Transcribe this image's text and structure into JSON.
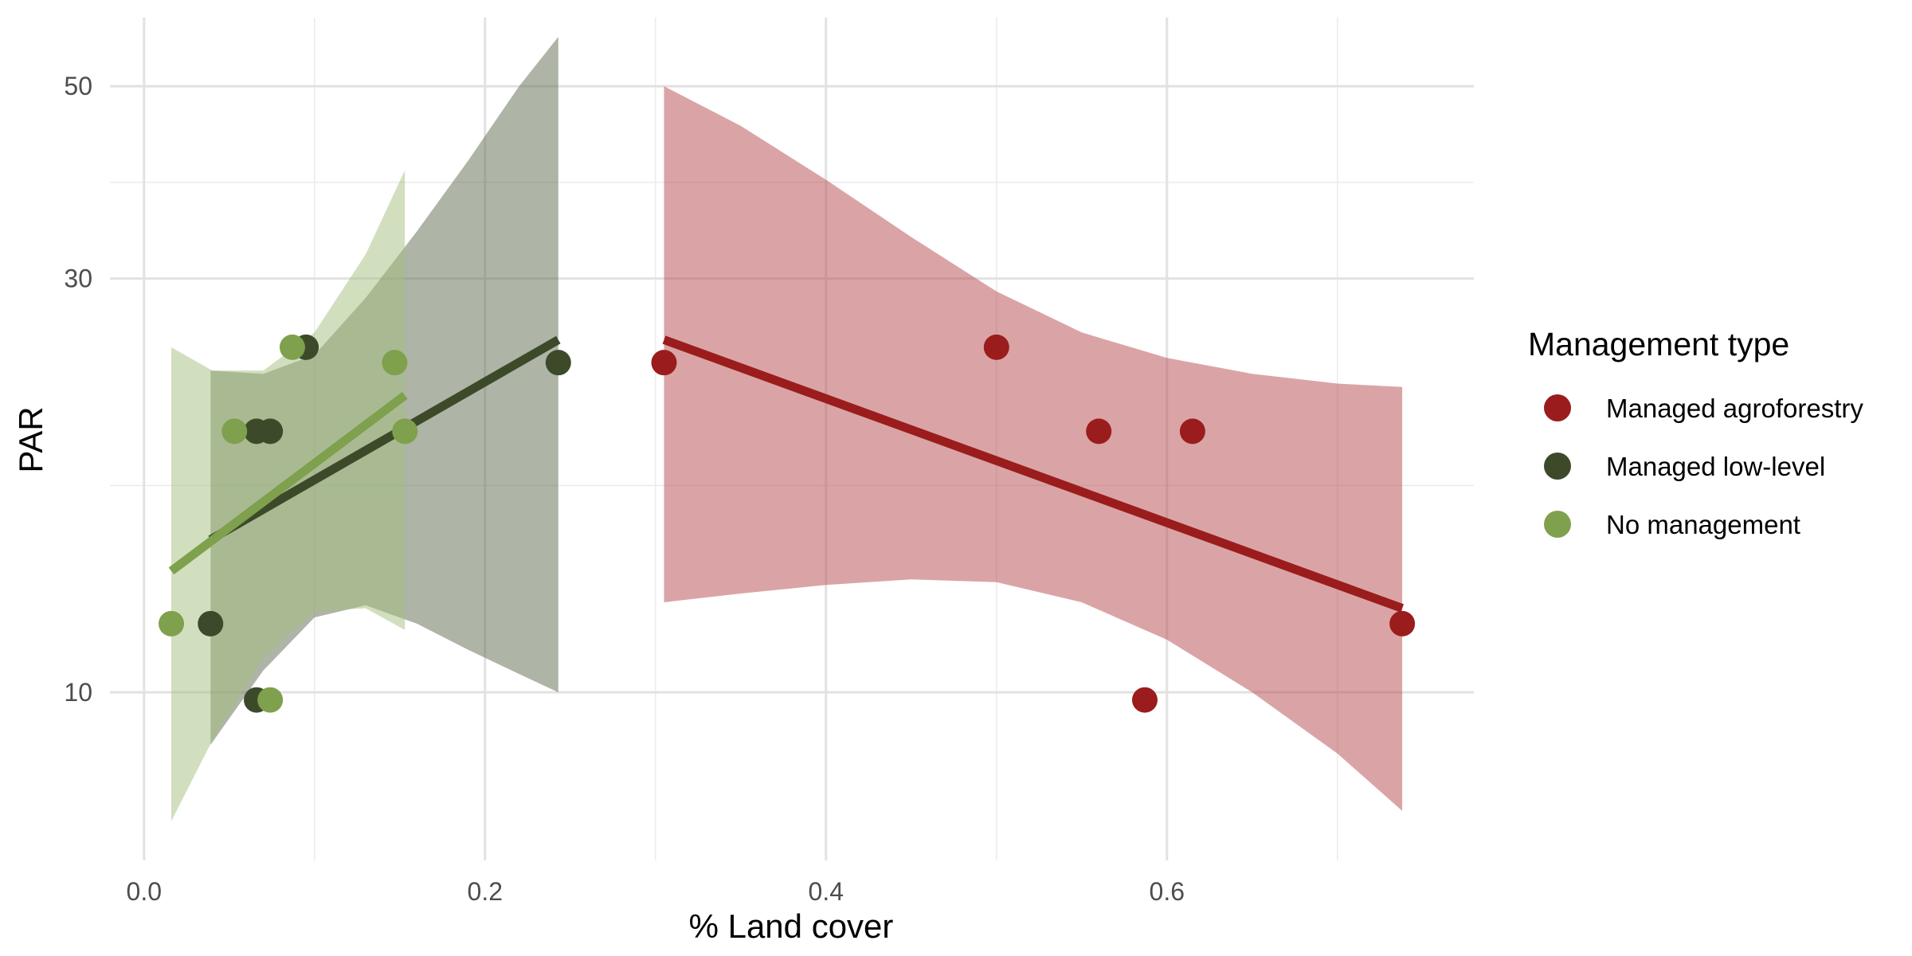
{
  "chart_data": {
    "type": "scatter",
    "title": "",
    "xlabel": "% Land cover",
    "ylabel": "PAR",
    "xlim": [
      -0.02,
      0.78
    ],
    "ylim": [
      6.4,
      60
    ],
    "y_scale": "log",
    "grid": true,
    "x_ticks": [
      {
        "value": 0.0,
        "label": "0.0"
      },
      {
        "value": 0.2,
        "label": "0.2"
      },
      {
        "value": 0.4,
        "label": "0.4"
      },
      {
        "value": 0.6,
        "label": "0.6"
      }
    ],
    "y_ticks": [
      {
        "value": 10,
        "label": "10"
      },
      {
        "value": 30,
        "label": "30"
      },
      {
        "value": 50,
        "label": "50"
      }
    ],
    "legend": {
      "title": "Management type",
      "position": "right"
    },
    "series": [
      {
        "name": "Managed agroforestry",
        "color": "#9b1c1c",
        "band_color": "#b54a4d",
        "points": [
          {
            "x": 0.305,
            "y": 24
          },
          {
            "x": 0.5,
            "y": 25
          },
          {
            "x": 0.56,
            "y": 20
          },
          {
            "x": 0.615,
            "y": 20
          },
          {
            "x": 0.587,
            "y": 9.8
          },
          {
            "x": 0.738,
            "y": 12
          }
        ],
        "fit": [
          {
            "x": 0.305,
            "y": 25.5
          },
          {
            "x": 0.738,
            "y": 12.5
          }
        ],
        "ci": [
          {
            "x": 0.305,
            "lo": 12.7,
            "hi": 50.0
          },
          {
            "x": 0.35,
            "lo": 13.0,
            "hi": 45.0
          },
          {
            "x": 0.4,
            "lo": 13.3,
            "hi": 39.0
          },
          {
            "x": 0.45,
            "lo": 13.5,
            "hi": 33.5
          },
          {
            "x": 0.5,
            "lo": 13.4,
            "hi": 29.0
          },
          {
            "x": 0.55,
            "lo": 12.7,
            "hi": 26.0
          },
          {
            "x": 0.6,
            "lo": 11.5,
            "hi": 24.3
          },
          {
            "x": 0.65,
            "lo": 10.0,
            "hi": 23.3
          },
          {
            "x": 0.7,
            "lo": 8.5,
            "hi": 22.7
          },
          {
            "x": 0.738,
            "lo": 7.3,
            "hi": 22.5
          }
        ]
      },
      {
        "name": "Managed low-level",
        "color": "#3d4a2a",
        "band_color": "#5e6a4e",
        "points": [
          {
            "x": 0.039,
            "y": 12
          },
          {
            "x": 0.066,
            "y": 9.8
          },
          {
            "x": 0.066,
            "y": 20
          },
          {
            "x": 0.074,
            "y": 20
          },
          {
            "x": 0.095,
            "y": 25
          },
          {
            "x": 0.243,
            "y": 24
          }
        ],
        "fit": [
          {
            "x": 0.039,
            "y": 15.0
          },
          {
            "x": 0.243,
            "y": 25.5
          }
        ],
        "ci": [
          {
            "x": 0.039,
            "lo": 8.7,
            "hi": 23.5
          },
          {
            "x": 0.07,
            "lo": 10.6,
            "hi": 23.3
          },
          {
            "x": 0.1,
            "lo": 12.2,
            "hi": 24.5
          },
          {
            "x": 0.13,
            "lo": 12.6,
            "hi": 28.5
          },
          {
            "x": 0.16,
            "lo": 12.0,
            "hi": 34.0
          },
          {
            "x": 0.19,
            "lo": 11.2,
            "hi": 41.0
          },
          {
            "x": 0.22,
            "lo": 10.5,
            "hi": 50.0
          },
          {
            "x": 0.243,
            "lo": 10.0,
            "hi": 57.0
          }
        ]
      },
      {
        "name": "No management",
        "color": "#7fa04d",
        "band_color": "#a3bf80",
        "points": [
          {
            "x": 0.016,
            "y": 12
          },
          {
            "x": 0.053,
            "y": 20
          },
          {
            "x": 0.074,
            "y": 9.8
          },
          {
            "x": 0.087,
            "y": 25
          },
          {
            "x": 0.147,
            "y": 24
          },
          {
            "x": 0.153,
            "y": 20
          }
        ],
        "fit": [
          {
            "x": 0.016,
            "y": 13.8
          },
          {
            "x": 0.153,
            "y": 22.0
          }
        ],
        "ci": [
          {
            "x": 0.016,
            "lo": 7.1,
            "hi": 25.0
          },
          {
            "x": 0.04,
            "lo": 8.8,
            "hi": 23.5
          },
          {
            "x": 0.07,
            "lo": 11.0,
            "hi": 23.5
          },
          {
            "x": 0.1,
            "lo": 12.4,
            "hi": 26.0
          },
          {
            "x": 0.13,
            "lo": 12.5,
            "hi": 32.0
          },
          {
            "x": 0.153,
            "lo": 11.8,
            "hi": 40.0
          }
        ]
      }
    ]
  }
}
